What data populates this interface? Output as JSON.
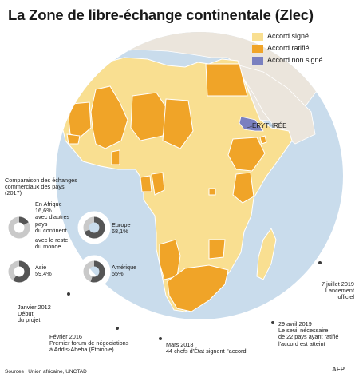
{
  "title": "La Zone de libre-échange continentale (Zlec)",
  "colors": {
    "ocean": "#c9dcec",
    "land_other": "#ebe5dc",
    "signed": "#f9df91",
    "ratified": "#f0a428",
    "not_signed": "#7a80c0",
    "timeline_dot": "#3b3b3b"
  },
  "legend": [
    {
      "label": "Accord signé",
      "status": "signed"
    },
    {
      "label": "Accord ratifié",
      "status": "ratified"
    },
    {
      "label": "Accord non signé",
      "status": "not_signed"
    }
  ],
  "map_labels": {
    "eritrea": "ERYTHRÉE"
  },
  "comparison": {
    "heading_line1": "Comparaison des échanges",
    "heading_line2": "commerciaux des pays",
    "heading_line3": "(2017)",
    "items": [
      {
        "region": "En Afrique",
        "value": "16,6%",
        "pct": 16.6,
        "note_line1": "avec d'autres",
        "note_line2": "pays",
        "note_line3": "du continent",
        "rest_line1": "avec le reste",
        "rest_line2": "du monde"
      },
      {
        "region": "Europe",
        "value": "68,1%",
        "pct": 68.1
      },
      {
        "region": "Asie",
        "value": "59,4%",
        "pct": 59.4
      },
      {
        "region": "Amérique",
        "value": "55%",
        "pct": 55
      }
    ]
  },
  "timeline": [
    {
      "date": "Janvier 2012",
      "text_line1": "Début",
      "text_line2": "du projet"
    },
    {
      "date": "Février 2016",
      "text_line1": "Premier forum de négociations",
      "text_line2": "à Addis-Abeba (Éthiopie)"
    },
    {
      "date": "Mars 2018",
      "text_line1": "44 chefs d'État signent l'accord"
    },
    {
      "date": "29 avril 2019",
      "text_line1": "Le seuil nécessaire",
      "text_line2": "de 22 pays ayant ratifié",
      "text_line3": "l'accord est atteint"
    },
    {
      "date": "7 juillet 2019",
      "text_line1": "Lancement",
      "text_line2": "officiel"
    }
  ],
  "sources": "Sources : Union africaine, UNCTAD",
  "logo": "AFP"
}
